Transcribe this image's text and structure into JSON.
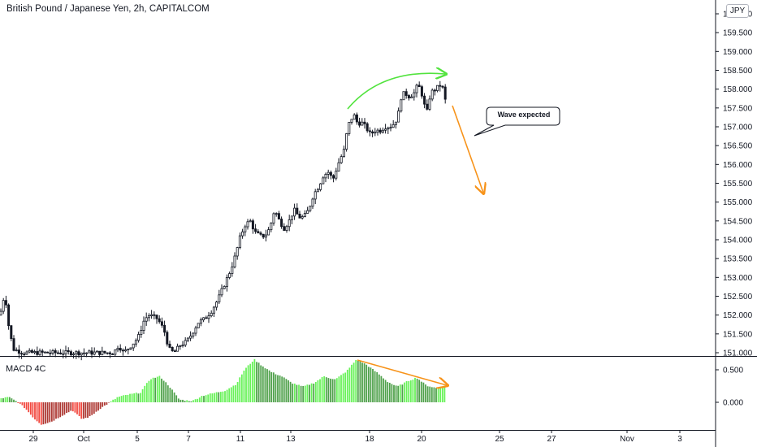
{
  "header": {
    "symbol_title": "British Pound / Japanese Yen, 2h, CAPITALCOM",
    "currency": "JPY"
  },
  "macd_pane": {
    "label": "MACD 4C"
  },
  "annotation": {
    "callout": "Wave expected"
  },
  "colors": {
    "candle": "#131722",
    "histogram_up_strong": "#69f25a",
    "histogram_up_weak": "#4fa14b",
    "histogram_down_strong": "#f2483f",
    "histogram_down_weak": "#ad3833",
    "green_arrow": "#52e33e",
    "orange_arrow": "#f7931a"
  },
  "chart_data": [
    {
      "type": "candlestick",
      "ylim": [
        151.0,
        160.0
      ],
      "y_ticks": [
        "151.000",
        "151.500",
        "152.000",
        "152.500",
        "153.000",
        "153.500",
        "154.000",
        "154.500",
        "155.000",
        "155.500",
        "156.000",
        "156.500",
        "157.000",
        "157.500",
        "158.000",
        "158.500",
        "159.000",
        "159.500",
        "160.000"
      ],
      "x_ticks": [
        "29",
        "Oct",
        "5",
        "7",
        "11",
        "13",
        "18",
        "20",
        "25",
        "27",
        "Nov",
        "3"
      ],
      "path": [
        [
          0,
          152.0
        ],
        [
          6,
          152.6
        ],
        [
          10,
          151.8
        ],
        [
          16,
          151.1
        ],
        [
          28,
          151.0
        ],
        [
          42,
          151.0
        ],
        [
          60,
          151.0
        ],
        [
          80,
          151.0
        ],
        [
          100,
          151.0
        ],
        [
          120,
          151.0
        ],
        [
          140,
          151.0
        ],
        [
          146,
          151.2
        ],
        [
          152,
          151.0
        ],
        [
          162,
          151.2
        ],
        [
          170,
          151.4
        ],
        [
          178,
          151.9
        ],
        [
          184,
          152.0
        ],
        [
          194,
          151.9
        ],
        [
          202,
          151.6
        ],
        [
          208,
          151.1
        ],
        [
          214,
          151.0
        ],
        [
          222,
          151.2
        ],
        [
          230,
          151.3
        ],
        [
          236,
          151.5
        ],
        [
          244,
          151.8
        ],
        [
          252,
          151.9
        ],
        [
          260,
          152.1
        ],
        [
          268,
          152.4
        ],
        [
          276,
          152.8
        ],
        [
          284,
          153.2
        ],
        [
          290,
          153.6
        ],
        [
          296,
          154.1
        ],
        [
          302,
          154.4
        ],
        [
          308,
          154.5
        ],
        [
          314,
          154.2
        ],
        [
          320,
          154.1
        ],
        [
          326,
          154.1
        ],
        [
          332,
          154.3
        ],
        [
          338,
          154.8
        ],
        [
          344,
          154.5
        ],
        [
          350,
          154.3
        ],
        [
          356,
          154.5
        ],
        [
          362,
          154.8
        ],
        [
          368,
          154.6
        ],
        [
          374,
          154.6
        ],
        [
          380,
          154.8
        ],
        [
          386,
          155.2
        ],
        [
          392,
          155.4
        ],
        [
          398,
          155.7
        ],
        [
          404,
          155.8
        ],
        [
          410,
          155.6
        ],
        [
          416,
          156.0
        ],
        [
          420,
          156.2
        ],
        [
          424,
          156.4
        ],
        [
          428,
          157.0
        ],
        [
          432,
          157.2
        ],
        [
          436,
          157.3
        ],
        [
          440,
          157.1
        ],
        [
          446,
          157.1
        ],
        [
          450,
          157.0
        ],
        [
          456,
          156.8
        ],
        [
          462,
          156.9
        ],
        [
          468,
          156.9
        ],
        [
          474,
          157.0
        ],
        [
          480,
          157.0
        ],
        [
          486,
          157.1
        ],
        [
          490,
          157.3
        ],
        [
          494,
          157.8
        ],
        [
          498,
          157.9
        ],
        [
          504,
          157.8
        ],
        [
          510,
          157.9
        ],
        [
          514,
          158.1
        ],
        [
          518,
          158.0
        ],
        [
          522,
          157.6
        ],
        [
          526,
          157.4
        ],
        [
          530,
          157.9
        ],
        [
          536,
          158.0
        ],
        [
          542,
          158.1
        ],
        [
          546,
          158.0
        ],
        [
          549,
          157.6
        ]
      ]
    },
    {
      "type": "bar",
      "name": "MACD 4C",
      "ylim": [
        -0.36,
        0.62
      ],
      "y_ticks": [
        "0.500",
        "0.000"
      ],
      "path": [
        [
          0,
          0.06
        ],
        [
          10,
          0.08
        ],
        [
          20,
          0.01
        ],
        [
          30,
          -0.09
        ],
        [
          42,
          -0.26
        ],
        [
          50,
          -0.34
        ],
        [
          62,
          -0.3
        ],
        [
          76,
          -0.2
        ],
        [
          88,
          -0.12
        ],
        [
          100,
          -0.26
        ],
        [
          110,
          -0.22
        ],
        [
          122,
          -0.1
        ],
        [
          132,
          -0.02
        ],
        [
          144,
          0.08
        ],
        [
          158,
          0.12
        ],
        [
          172,
          0.15
        ],
        [
          184,
          0.36
        ],
        [
          196,
          0.4
        ],
        [
          208,
          0.24
        ],
        [
          220,
          0.04
        ],
        [
          236,
          0.02
        ],
        [
          248,
          0.1
        ],
        [
          262,
          0.14
        ],
        [
          276,
          0.18
        ],
        [
          290,
          0.28
        ],
        [
          300,
          0.5
        ],
        [
          312,
          0.66
        ],
        [
          322,
          0.56
        ],
        [
          334,
          0.46
        ],
        [
          346,
          0.4
        ],
        [
          358,
          0.3
        ],
        [
          372,
          0.24
        ],
        [
          386,
          0.3
        ],
        [
          398,
          0.4
        ],
        [
          412,
          0.35
        ],
        [
          426,
          0.48
        ],
        [
          438,
          0.66
        ],
        [
          450,
          0.58
        ],
        [
          464,
          0.45
        ],
        [
          476,
          0.32
        ],
        [
          488,
          0.24
        ],
        [
          502,
          0.33
        ],
        [
          512,
          0.38
        ],
        [
          524,
          0.26
        ],
        [
          536,
          0.22
        ],
        [
          549,
          0.26
        ]
      ]
    }
  ]
}
